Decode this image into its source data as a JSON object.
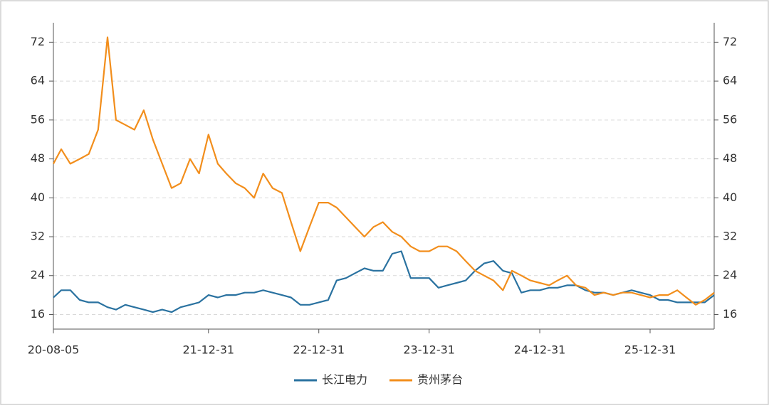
{
  "chart_data": {
    "type": "line",
    "x": [
      "20-08-05",
      "20-08-31",
      "20-09-30",
      "20-10-31",
      "20-11-30",
      "20-12-31",
      "21-01-31",
      "21-02-28",
      "21-03-31",
      "21-04-30",
      "21-05-31",
      "21-06-30",
      "21-07-31",
      "21-08-31",
      "21-09-30",
      "21-10-31",
      "21-11-30",
      "21-12-31",
      "22-01-31",
      "22-02-28",
      "22-03-31",
      "22-04-30",
      "22-05-31",
      "22-06-30",
      "22-07-31",
      "22-08-31",
      "22-09-30",
      "22-10-31",
      "22-11-30",
      "22-12-31",
      "23-01-31",
      "23-02-28",
      "23-03-31",
      "23-04-30",
      "23-05-31",
      "23-06-30",
      "23-07-31",
      "23-08-31",
      "23-09-30",
      "23-10-31",
      "23-11-30",
      "23-12-31",
      "24-01-31",
      "24-02-29",
      "24-03-31",
      "24-04-30",
      "24-05-31",
      "24-06-30",
      "24-07-31",
      "24-08-31",
      "24-09-30",
      "24-10-31",
      "24-11-30",
      "24-12-31",
      "25-01-31",
      "25-02-28",
      "25-03-31",
      "25-04-30",
      "25-05-31",
      "25-06-30",
      "25-07-31",
      "25-08-31",
      "25-09-30",
      "25-10-31",
      "25-11-30",
      "25-12-31",
      "26-01-31",
      "26-02-28",
      "26-03-31",
      "26-04-30",
      "26-05-31",
      "26-06-30",
      "26-07-31"
    ],
    "series": [
      {
        "name": "长江电力",
        "color": "#2a72a0",
        "values": [
          19.5,
          21,
          21,
          19,
          18.5,
          18.5,
          17.5,
          17,
          18,
          17.5,
          17,
          16.5,
          17,
          16.5,
          17.5,
          18,
          18.5,
          20,
          19.5,
          20,
          20,
          20.5,
          20.5,
          21,
          20.5,
          20,
          19.5,
          18,
          18,
          18.5,
          19,
          23,
          23.5,
          24.5,
          25.5,
          25,
          25,
          28.5,
          29,
          23.5,
          23.5,
          23.5,
          21.5,
          22,
          22.5,
          23,
          25,
          26.5,
          27,
          25,
          24.5,
          20.5,
          21,
          21,
          21.5,
          21.5,
          22,
          22,
          21,
          20.5,
          20.5,
          20,
          20.5,
          21,
          20.5,
          20,
          19,
          19,
          18.5,
          18.5,
          18.5,
          18.5,
          20
        ]
      },
      {
        "name": "贵州茅台",
        "color": "#f28e1c",
        "axis": "y2",
        "values": [
          47,
          50,
          47,
          48,
          49,
          54,
          73,
          56,
          55,
          54,
          58,
          52,
          47,
          42,
          43,
          48,
          45,
          53,
          47,
          45,
          43,
          42,
          40,
          45,
          42,
          41,
          35,
          29,
          34,
          39,
          39,
          38,
          36,
          34,
          32,
          34,
          35,
          33,
          32,
          30,
          29,
          29,
          30,
          30,
          29,
          27,
          25,
          24,
          23,
          21,
          25,
          24,
          23,
          22.5,
          22,
          23,
          24,
          22,
          21.5,
          20,
          20.5,
          20,
          20.5,
          20.5,
          20,
          19.5,
          20,
          20,
          21,
          19.5,
          18,
          19,
          20.5
        ]
      }
    ],
    "xlim": [
      "20-08-05",
      "26-07-31"
    ],
    "xticks": [
      "20-08-05",
      "21-12-31",
      "22-12-31",
      "23-12-31",
      "24-12-31",
      "25-12-31"
    ],
    "ylim": [
      13,
      76
    ],
    "yticks": [
      16,
      24,
      32,
      40,
      48,
      56,
      64,
      72
    ],
    "y2lim": [
      13,
      76
    ],
    "y2ticks": [
      16,
      24,
      32,
      40,
      48,
      56,
      64,
      72
    ],
    "grid": true,
    "legend": "bottom"
  }
}
